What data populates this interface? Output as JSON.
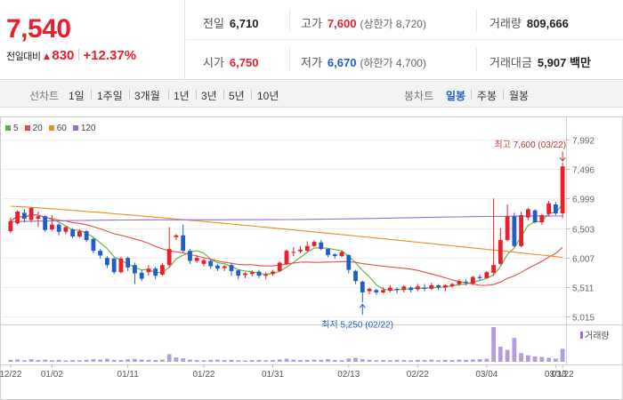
{
  "header": {
    "current_price": "7,540",
    "change_label": "전일대비",
    "change_icon": "up-triangle-icon",
    "change_value": "830",
    "change_percent": "+12.37%",
    "prev_close_label": "전일",
    "prev_close": "6,710",
    "high_label": "고가",
    "high": "7,600",
    "upper_limit": "(상한가 8,720)",
    "volume_label": "거래량",
    "volume": "809,666",
    "open_label": "시가",
    "open": "6,750",
    "low_label": "저가",
    "low": "6,670",
    "lower_limit": "(하한가 4,700)",
    "amount_label": "거래대금",
    "amount": "5,907 백만",
    "up_color": "#e8202e",
    "down_color": "#1f5ec9"
  },
  "period_bar": {
    "line_label": "선차트",
    "line_options": [
      "1일",
      "1주일",
      "3개월",
      "1년",
      "3년",
      "5년",
      "10년"
    ],
    "candle_label": "봉차트",
    "candle_options": [
      "일봉",
      "주봉",
      "월봉"
    ],
    "active_candle": "일봉"
  },
  "legend": [
    {
      "label": "5",
      "color": "#5ab33a"
    },
    {
      "label": "20",
      "color": "#e84a4a"
    },
    {
      "label": "60",
      "color": "#f08c1e"
    },
    {
      "label": "120",
      "color": "#9b6cd8"
    }
  ],
  "chart_data": {
    "type": "candlestick",
    "y_ticks": [
      "7,992",
      "7,496",
      "6,999",
      "6,503",
      "6,007",
      "5,511",
      "5,015"
    ],
    "ylim": [
      5015,
      7992
    ],
    "x_tick_labels": [
      "12/22",
      "01/02",
      "01/11",
      "01/22",
      "01/31",
      "02/13",
      "02/22",
      "03/04",
      "03/13",
      "03/22"
    ],
    "high_annotation": "최고 7,600 (03/22)",
    "low_annotation": "최저 5,250 (02/22)",
    "volume_legend": "거래량",
    "candles": [
      [
        6450,
        6620,
        6420,
        6680
      ],
      [
        6580,
        6780,
        6560,
        6800
      ],
      [
        6760,
        6660,
        6600,
        6820
      ],
      [
        6640,
        6840,
        6600,
        6860
      ],
      [
        6660,
        6700,
        6520,
        6780
      ],
      [
        6700,
        6470,
        6440,
        6720
      ],
      [
        6480,
        6560,
        6460,
        6720
      ],
      [
        6560,
        6440,
        6380,
        6580
      ],
      [
        6440,
        6520,
        6400,
        6540
      ],
      [
        6480,
        6360,
        6330,
        6500
      ],
      [
        6360,
        6450,
        6340,
        6480
      ],
      [
        6450,
        6300,
        6270,
        6470
      ],
      [
        6320,
        6120,
        6080,
        6340
      ],
      [
        6120,
        6040,
        5990,
        6150
      ],
      [
        6000,
        5880,
        5830,
        6030
      ],
      [
        5990,
        5760,
        5730,
        6000
      ],
      [
        5760,
        5990,
        5740,
        6020
      ],
      [
        6000,
        5840,
        5780,
        6020
      ],
      [
        5880,
        5740,
        5560,
        5920
      ],
      [
        5750,
        5650,
        5610,
        5800
      ],
      [
        5760,
        5820,
        5700,
        5880
      ],
      [
        5820,
        5700,
        5640,
        5850
      ],
      [
        5720,
        5880,
        5700,
        5910
      ],
      [
        5880,
        6150,
        5840,
        6520
      ],
      [
        6350,
        6380,
        6300,
        6400
      ],
      [
        6380,
        6120,
        6090,
        6560
      ],
      [
        6120,
        5950,
        5900,
        6150
      ],
      [
        5950,
        6000,
        5920,
        6050
      ],
      [
        5900,
        5960,
        5860,
        5990
      ],
      [
        5950,
        5860,
        5820,
        5980
      ],
      [
        5870,
        5820,
        5780,
        5900
      ],
      [
        5830,
        5860,
        5780,
        5880
      ],
      [
        5880,
        5780,
        5700,
        5920
      ],
      [
        5790,
        5700,
        5640,
        5800
      ],
      [
        5710,
        5740,
        5660,
        5760
      ],
      [
        5730,
        5760,
        5690,
        5790
      ],
      [
        5770,
        5700,
        5660,
        5800
      ],
      [
        5700,
        5720,
        5640,
        5760
      ],
      [
        5730,
        5770,
        5700,
        5800
      ],
      [
        5780,
        5920,
        5760,
        5940
      ],
      [
        5900,
        6120,
        5880,
        6140
      ],
      [
        6100,
        6100,
        6030,
        6180
      ],
      [
        6110,
        6140,
        6080,
        6200
      ],
      [
        6120,
        6200,
        6100,
        6280
      ],
      [
        6200,
        6270,
        6180,
        6300
      ],
      [
        6260,
        6150,
        6130,
        6300
      ],
      [
        6150,
        6050,
        6010,
        6160
      ],
      [
        6060,
        6030,
        5990,
        6080
      ],
      [
        6030,
        6100,
        6010,
        6130
      ],
      [
        6050,
        5800,
        5740,
        6060
      ],
      [
        5780,
        5610,
        5560,
        5800
      ],
      [
        5600,
        5420,
        5250,
        5620
      ],
      [
        5440,
        5480,
        5390,
        5500
      ],
      [
        5460,
        5420,
        5380,
        5480
      ],
      [
        5420,
        5460,
        5400,
        5500
      ],
      [
        5450,
        5500,
        5420,
        5540
      ],
      [
        5480,
        5460,
        5400,
        5500
      ],
      [
        5460,
        5520,
        5420,
        5540
      ],
      [
        5500,
        5460,
        5420,
        5520
      ],
      [
        5470,
        5520,
        5440,
        5560
      ],
      [
        5500,
        5480,
        5440,
        5560
      ],
      [
        5480,
        5540,
        5460,
        5580
      ],
      [
        5540,
        5510,
        5460,
        5560
      ],
      [
        5500,
        5540,
        5440,
        5560
      ],
      [
        5530,
        5560,
        5500,
        5580
      ],
      [
        5560,
        5610,
        5530,
        5640
      ],
      [
        5600,
        5580,
        5540,
        5640
      ],
      [
        5570,
        5680,
        5540,
        5700
      ],
      [
        5680,
        5660,
        5620,
        5720
      ],
      [
        5660,
        5760,
        5650,
        5780
      ],
      [
        5750,
        5880,
        5700,
        7000
      ],
      [
        5900,
        6300,
        5880,
        6500
      ],
      [
        6300,
        6700,
        6280,
        6900
      ],
      [
        6700,
        6200,
        6180,
        6760
      ],
      [
        6200,
        6720,
        6180,
        6780
      ],
      [
        6680,
        6820,
        6640,
        6840
      ],
      [
        6800,
        6600,
        6580,
        6820
      ],
      [
        6600,
        6720,
        6560,
        6740
      ],
      [
        6740,
        6920,
        6700,
        6960
      ],
      [
        6900,
        6750,
        6720,
        6940
      ],
      [
        6750,
        7540,
        6670,
        7600
      ]
    ],
    "volumes": [
      9,
      11,
      7,
      12,
      8,
      10,
      7,
      9,
      6,
      8,
      7,
      9,
      12,
      10,
      14,
      9,
      8,
      11,
      13,
      10,
      9,
      8,
      10,
      35,
      20,
      16,
      10,
      8,
      7,
      9,
      10,
      8,
      9,
      7,
      6,
      8,
      9,
      7,
      8,
      11,
      14,
      10,
      8,
      9,
      10,
      9,
      12,
      8,
      7,
      15,
      18,
      12,
      9,
      7,
      8,
      7,
      9,
      8,
      7,
      9,
      8,
      10,
      7,
      9,
      8,
      10,
      9,
      11,
      12,
      14,
      160,
      70,
      55,
      110,
      40,
      30,
      25,
      22,
      18,
      15,
      60
    ]
  }
}
